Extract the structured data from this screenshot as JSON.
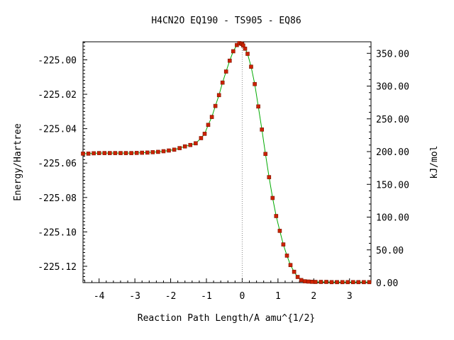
{
  "chart_data": {
    "type": "line",
    "title": "H4CN2O   EQ190 - TS905 - EQ86",
    "xlabel": "Reaction Path Length/A amu^{1/2}",
    "ylabel": "Energy/Hartree",
    "y2label": "kJ/mol",
    "xlim": [
      -4.45,
      3.6
    ],
    "ylim": [
      -225.1295,
      -224.9895
    ],
    "y2lim": [
      0.0,
      367.6
    ],
    "grid": false,
    "x_ticks": [
      -4,
      -3,
      -2,
      -1,
      0,
      1,
      2,
      3
    ],
    "x_tick_labels": [
      "-4",
      "-3",
      "-2",
      "-1",
      "0",
      "1",
      "2",
      "3"
    ],
    "y_ticks": [
      -225.12,
      -225.1,
      -225.08,
      -225.06,
      -225.04,
      -225.02,
      -225.0
    ],
    "y_tick_labels": [
      "-225.12",
      "-225.10",
      "-225.08",
      "-225.06",
      "-225.04",
      "-225.02",
      "-225.00"
    ],
    "y2_ticks": [
      0,
      50,
      100,
      150,
      200,
      250,
      300,
      350
    ],
    "y2_tick_labels": [
      "0.00",
      "50.00",
      "100.00",
      "150.00",
      "200.00",
      "250.00",
      "300.00",
      "350.00"
    ],
    "ts_marker_x": 0.0,
    "series": [
      {
        "line_color": "#00aa00",
        "marker_color": "#cc2200",
        "x": [
          -4.45,
          -4.3,
          -4.15,
          -4.0,
          -3.85,
          -3.7,
          -3.55,
          -3.4,
          -3.25,
          -3.1,
          -2.95,
          -2.8,
          -2.65,
          -2.5,
          -2.35,
          -2.2,
          -2.05,
          -1.9,
          -1.75,
          -1.6,
          -1.45,
          -1.3,
          -1.15,
          -1.05,
          -0.95,
          -0.85,
          -0.75,
          -0.65,
          -0.55,
          -0.45,
          -0.35,
          -0.25,
          -0.15,
          -0.08,
          -0.03,
          0.0,
          0.03,
          0.08,
          0.15,
          0.25,
          0.35,
          0.45,
          0.55,
          0.65,
          0.75,
          0.85,
          0.95,
          1.05,
          1.15,
          1.25,
          1.35,
          1.45,
          1.55,
          1.65,
          1.75,
          1.85,
          1.95,
          2.05,
          2.2,
          2.35,
          2.5,
          2.65,
          2.8,
          2.95,
          3.1,
          3.25,
          3.4,
          3.55
        ],
        "y": [
          -225.0545,
          -225.0545,
          -225.0543,
          -225.0542,
          -225.0542,
          -225.0542,
          -225.0542,
          -225.0542,
          -225.0542,
          -225.0542,
          -225.0541,
          -225.054,
          -225.0539,
          -225.0537,
          -225.0535,
          -225.0531,
          -225.0527,
          -225.0522,
          -225.0513,
          -225.0503,
          -225.0495,
          -225.0485,
          -225.0455,
          -225.043,
          -225.0378,
          -225.0332,
          -225.0268,
          -225.0205,
          -225.0132,
          -225.0068,
          -225.0005,
          -224.995,
          -224.9914,
          -224.9903,
          -224.9905,
          -224.9908,
          -224.9917,
          -224.9935,
          -224.9965,
          -225.004,
          -225.0141,
          -225.0271,
          -225.0405,
          -225.0547,
          -225.0682,
          -225.0803,
          -225.0908,
          -225.0994,
          -225.1073,
          -225.1138,
          -225.1193,
          -225.1232,
          -225.1262,
          -225.128,
          -225.1287,
          -225.1289,
          -225.129,
          -225.1291,
          -225.1291,
          -225.1291,
          -225.1292,
          -225.1292,
          -225.1292,
          -225.1292,
          -225.1292,
          -225.1292,
          -225.1292,
          -225.1292
        ]
      }
    ]
  }
}
